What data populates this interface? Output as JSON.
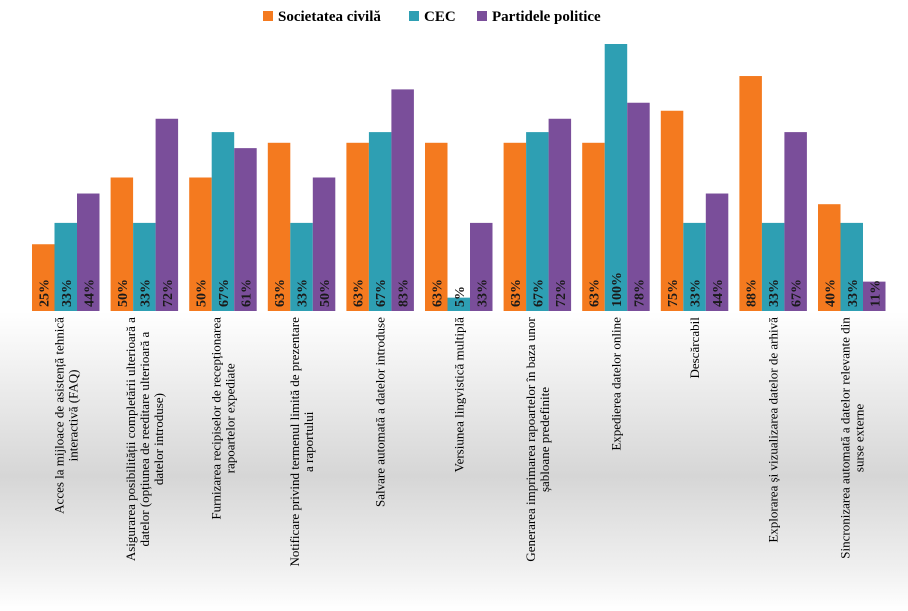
{
  "chart_data": {
    "type": "bar",
    "title": "",
    "xlabel": "",
    "ylabel": "",
    "ylim": [
      0,
      100
    ],
    "grid": false,
    "legend_position": "top-center",
    "value_suffix": "%",
    "categories": [
      [
        "Acces la mijloace de asistență tehnică",
        "interactivă (FAQ)"
      ],
      [
        "Asigurarea posibilității completării ulterioară a",
        "datelor (opțiunea de reeditare ulterioară a",
        "datelor introduse)"
      ],
      [
        "Furnizarea recipiselor de recepționarea",
        "rapoartelor expediate"
      ],
      [
        "Notificare privind termenul limită de prezentare",
        "a raportului"
      ],
      [
        "Salvare automată a datelor introduse"
      ],
      [
        "Versiunea lingvistică multiplă"
      ],
      [
        "Generarea imprimarea rapoartelor în baza unor",
        "șabloane predefinite"
      ],
      [
        "Expedierea datelor online"
      ],
      [
        "Descărcabil"
      ],
      [
        "Explorarea și vizualizarea datelor de arhivă"
      ],
      [
        "Sincronizarea automată a datelor relevante din",
        "surse externe"
      ]
    ],
    "series": [
      {
        "name": "Societatea civilă",
        "color": "#F47A1F",
        "values": [
          25,
          50,
          50,
          63,
          63,
          63,
          63,
          63,
          75,
          88,
          40
        ],
        "labels": [
          "25%",
          "50%",
          "50%",
          "63%",
          "63%",
          "63%",
          "63%",
          "63%",
          "75%",
          "88%",
          "40%"
        ]
      },
      {
        "name": "CEC",
        "color": "#2E9FB3",
        "values": [
          33,
          33,
          67,
          33,
          67,
          5,
          67,
          100,
          33,
          33,
          33
        ],
        "labels": [
          "33%",
          "33%",
          "67%",
          "33%",
          "67%",
          "5%",
          "67%",
          "100%",
          "33%",
          "33%",
          "33%"
        ]
      },
      {
        "name": "Partidele politice",
        "color": "#7A4E9A",
        "values": [
          44,
          72,
          61,
          50,
          83,
          33,
          72,
          78,
          44,
          67,
          11
        ],
        "labels": [
          "44%",
          "72%",
          "61%",
          "50%",
          "83%",
          "33%",
          "72%",
          "78%",
          "44%",
          "67%",
          "11%"
        ]
      }
    ]
  }
}
